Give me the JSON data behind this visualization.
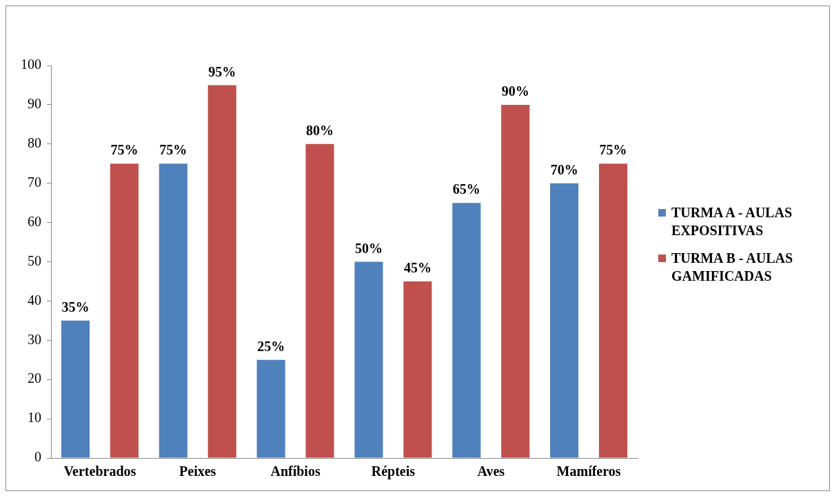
{
  "chart_data": {
    "type": "bar",
    "categories": [
      "Vertebrados",
      "Peixes",
      "Anfíbios",
      "Répteis",
      "Aves",
      "Mamíferos"
    ],
    "series": [
      {
        "name": "TURMA A - AULAS EXPOSITIVAS",
        "color": "#4f81bd",
        "values": [
          35,
          75,
          25,
          50,
          65,
          70
        ],
        "value_labels": [
          "35%",
          "75%",
          "25%",
          "50%",
          "65%",
          "70%"
        ]
      },
      {
        "name": "TURMA B - AULAS GAMIFICADAS",
        "color": "#c0504d",
        "values": [
          75,
          95,
          80,
          45,
          90,
          75
        ],
        "value_labels": [
          "75%",
          "95%",
          "80%",
          "45%",
          "90%",
          "75%"
        ]
      }
    ],
    "ylim": [
      0,
      100
    ],
    "yticks": [
      0,
      10,
      20,
      30,
      40,
      50,
      60,
      70,
      80,
      90,
      100
    ],
    "grid": false,
    "legend": "right"
  }
}
